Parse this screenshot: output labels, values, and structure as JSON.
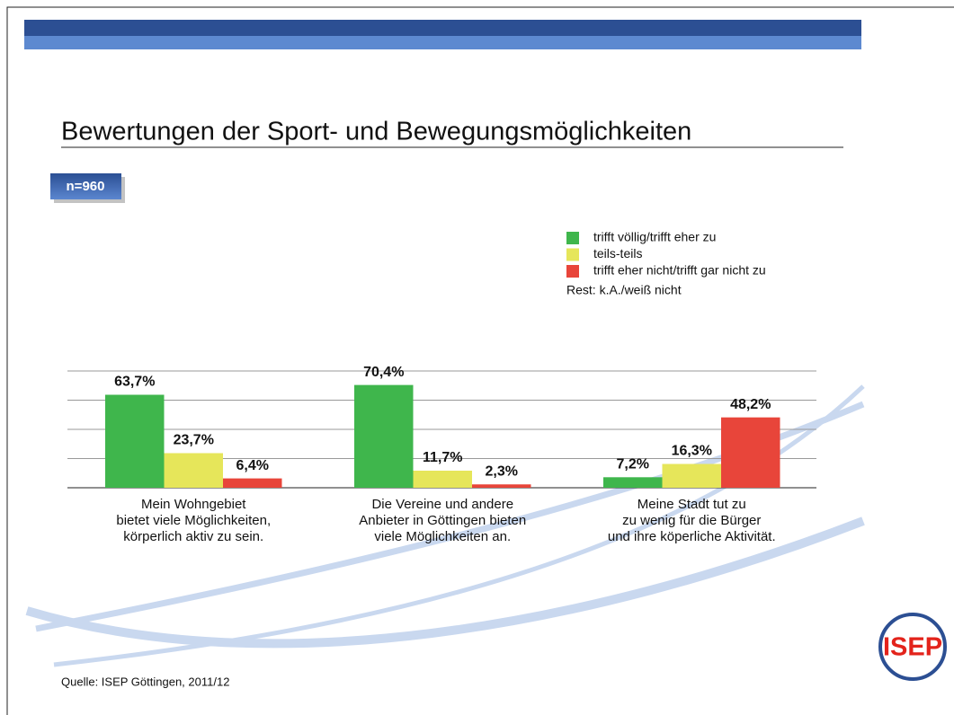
{
  "header": {
    "title": "Bewertungen der Sport- und Bewegungsmöglichkeiten",
    "sample": "n=960"
  },
  "chart_data": {
    "type": "bar",
    "categories": [
      [
        "Mein Wohngebiet",
        "bietet viele Möglichkeiten,",
        "körperlich aktiv zu sein."
      ],
      [
        "Die Vereine und andere",
        "Anbieter in Göttingen bieten",
        "viele Möglichkeiten an."
      ],
      [
        "Meine Stadt tut zu",
        "zu wenig für die Bürger",
        "und ihre köperliche Aktivität."
      ]
    ],
    "series": [
      {
        "name": "trifft völlig/trifft eher zu",
        "color": "#3fb64c",
        "values": [
          63.7,
          70.4,
          7.2
        ],
        "value_labels": [
          "63,7%",
          "70,4%",
          "7,2%"
        ]
      },
      {
        "name": "teils-teils",
        "color": "#e6e65a",
        "values": [
          23.7,
          11.7,
          16.3
        ],
        "value_labels": [
          "23,7%",
          "11,7%",
          "16,3%"
        ]
      },
      {
        "name": "trifft eher nicht/trifft gar nicht zu",
        "color": "#e8453a",
        "values": [
          6.4,
          2.3,
          48.2
        ],
        "value_labels": [
          "6,4%",
          "2,3%",
          "48,2%"
        ]
      }
    ],
    "note": "Rest: k.A./weiß nicht",
    "ylim": [
      0,
      80
    ],
    "yticks": [
      0,
      20,
      40,
      60,
      80
    ],
    "grid": true,
    "legend": "top-right"
  },
  "footer": {
    "source": "Quelle: ISEP Göttingen, 2011/12",
    "logo": "ISEP"
  }
}
